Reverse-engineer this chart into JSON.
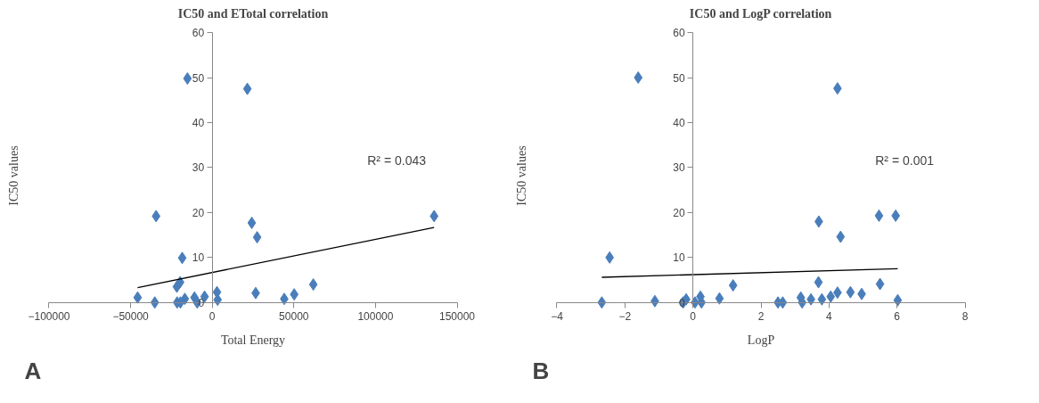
{
  "chart_data": [
    {
      "type": "scatter",
      "title": "IC50 and ETotal correlation",
      "xlabel": "Total Energy",
      "ylabel": "IC50 values",
      "annotations": [
        "A",
        "R² = 0.043"
      ],
      "xlim": [
        -100000,
        150000
      ],
      "xticks": [
        -100000,
        -50000,
        0,
        50000,
        100000,
        150000
      ],
      "ylim": [
        0,
        60
      ],
      "yticks": [
        0,
        10,
        20,
        30,
        40,
        50,
        60
      ],
      "grid": false,
      "series": [
        {
          "color": "#4a7ebb",
          "marker": "diamond",
          "x": [
            -45700,
            -35200,
            -34400,
            -18400,
            -21700,
            -19700,
            -21500,
            -19500,
            -16800,
            -15200,
            -10900,
            -9200,
            -4700,
            2900,
            3300,
            21500,
            24200,
            27500,
            26600,
            44100,
            50200,
            61900,
            135900
          ],
          "values": [
            1.1,
            0,
            19.2,
            9.9,
            3.5,
            4.5,
            0,
            0,
            0.8,
            49.8,
            1.1,
            0,
            1.3,
            2.3,
            0.6,
            47.5,
            17.7,
            14.5,
            2.1,
            0.8,
            1.8,
            4.0,
            19.2
          ]
        },
        {
          "type": "line",
          "color": "#000000",
          "x": [
            -45700,
            135900
          ],
          "values": [
            3.3,
            16.7
          ]
        }
      ]
    },
    {
      "type": "scatter",
      "title": "IC50 and LogP correlation",
      "xlabel": "LogP",
      "ylabel": "IC50 values",
      "annotations": [
        "B",
        "R² = 0.001"
      ],
      "xlim": [
        -4,
        8
      ],
      "xticks": [
        -4,
        -2,
        0,
        2,
        4,
        6,
        8
      ],
      "ylim": [
        0,
        60
      ],
      "yticks": [
        0,
        10,
        20,
        30,
        40,
        50,
        60
      ],
      "grid": false,
      "series": [
        {
          "color": "#4a7ebb",
          "marker": "diamond",
          "x": [
            -2.68,
            -2.45,
            -1.61,
            -1.12,
            -0.29,
            -0.2,
            0.06,
            0.22,
            0.25,
            0.78,
            1.18,
            2.5,
            2.64,
            3.17,
            3.21,
            3.47,
            3.7,
            3.69,
            3.79,
            4.05,
            4.25,
            4.25,
            4.34,
            4.63,
            4.96,
            5.47,
            5.5,
            5.96,
            6.02
          ],
          "values": [
            0,
            10,
            50,
            0.3,
            0,
            0.7,
            0,
            1.3,
            0,
            0.9,
            3.8,
            0,
            0,
            1.1,
            0,
            0.7,
            18,
            4.5,
            0.7,
            1.3,
            47.6,
            2.2,
            14.6,
            2.3,
            1.9,
            19.3,
            4.1,
            19.3,
            0.5
          ]
        },
        {
          "type": "line",
          "color": "#000000",
          "x": [
            -2.68,
            6.02
          ],
          "values": [
            5.6,
            7.5
          ]
        }
      ]
    }
  ]
}
